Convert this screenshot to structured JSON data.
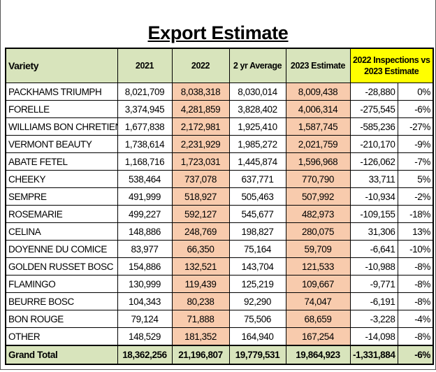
{
  "title": "Export Estimate",
  "table": {
    "header": [
      "Variety",
      "2021",
      "2022",
      "2 yr Average",
      "2023 Estimate",
      "2022 Inspections vs 2023 Estimate"
    ],
    "rows": [
      [
        "PACKHAMS TRIUMPH",
        "8,021,709",
        "8,038,318",
        "8,030,014",
        "8,009,438",
        "-28,880",
        "0%"
      ],
      [
        "FORELLE",
        "3,374,945",
        "4,281,859",
        "3,828,402",
        "4,006,314",
        "-275,545",
        "-6%"
      ],
      [
        "WILLIAMS BON CHRETIEN",
        "1,677,838",
        "2,172,981",
        "1,925,410",
        "1,587,745",
        "-585,236",
        "-27%"
      ],
      [
        "VERMONT BEAUTY",
        "1,738,614",
        "2,231,929",
        "1,985,272",
        "2,021,759",
        "-210,170",
        "-9%"
      ],
      [
        "ABATE FETEL",
        "1,168,716",
        "1,723,031",
        "1,445,874",
        "1,596,968",
        "-126,062",
        "-7%"
      ],
      [
        "CHEEKY",
        "538,464",
        "737,078",
        "637,771",
        "770,790",
        "33,711",
        "5%"
      ],
      [
        "SEMPRE",
        "491,999",
        "518,927",
        "505,463",
        "507,992",
        "-10,934",
        "-2%"
      ],
      [
        "ROSEMARIE",
        "499,227",
        "592,127",
        "545,677",
        "482,973",
        "-109,155",
        "-18%"
      ],
      [
        "CELINA",
        "148,886",
        "248,769",
        "198,827",
        "280,075",
        "31,306",
        "13%"
      ],
      [
        "DOYENNE DU COMICE",
        "83,977",
        "66,350",
        "75,164",
        "59,709",
        "-6,641",
        "-10%"
      ],
      [
        "GOLDEN RUSSET BOSC",
        "154,886",
        "132,521",
        "143,704",
        "121,533",
        "-10,988",
        "-8%"
      ],
      [
        "FLAMINGO",
        "130,999",
        "119,439",
        "125,219",
        "109,667",
        "-9,771",
        "-8%"
      ],
      [
        "BEURRE BOSC",
        "104,343",
        "80,238",
        "92,290",
        "74,047",
        "-6,191",
        "-8%"
      ],
      [
        "BON ROUGE",
        "79,124",
        "71,888",
        "75,506",
        "68,659",
        "-3,228",
        "-4%"
      ],
      [
        "OTHER",
        "148,529",
        "181,352",
        "164,940",
        "167,254",
        "-14,098",
        "-8%"
      ]
    ],
    "total": [
      "Grand Total",
      "18,362,256",
      "21,196,807",
      "19,779,531",
      "19,864,923",
      "-1,331,884",
      "-6%"
    ]
  }
}
